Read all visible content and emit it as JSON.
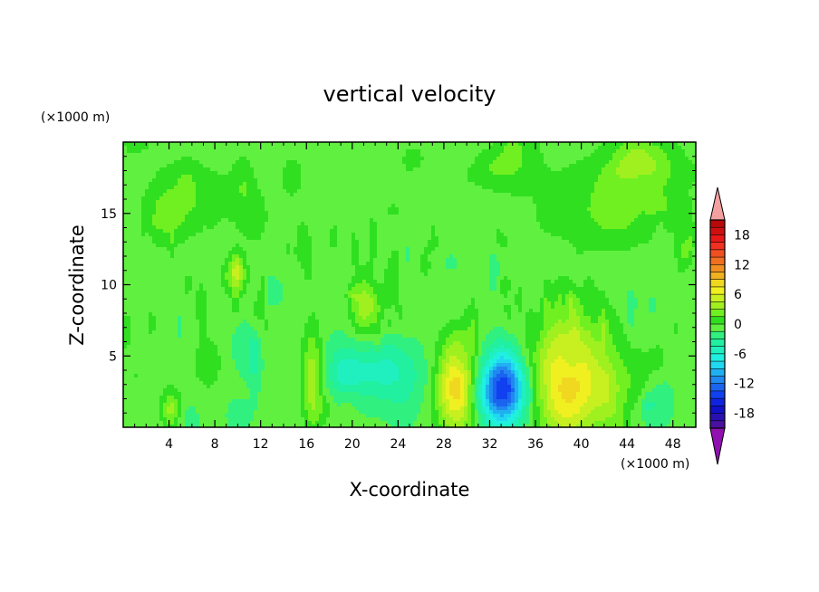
{
  "chart_data": {
    "type": "heatmap",
    "title": "vertical velocity",
    "xlabel": "X-coordinate",
    "ylabel": "Z-coordinate",
    "x_unit": "(×1000 m)",
    "y_unit": "(×1000 m)",
    "xlim": [
      0,
      50
    ],
    "ylim": [
      0,
      20
    ],
    "xticks": [
      4,
      8,
      12,
      16,
      20,
      24,
      28,
      32,
      36,
      40,
      44,
      48
    ],
    "yticks": [
      5,
      10,
      15
    ],
    "background_level": 0,
    "features": [
      {
        "x": 29.2,
        "z": 2.8,
        "value": 10,
        "sx": 1.3,
        "sz": 2.2
      },
      {
        "x": 39.0,
        "z": 3.5,
        "value": 9,
        "sx": 2.6,
        "sz": 3.2
      },
      {
        "x": 33.2,
        "z": 2.6,
        "value": -13,
        "sx": 1.6,
        "sz": 1.8
      },
      {
        "x": 22.5,
        "z": 4.0,
        "value": -4,
        "sx": 2.5,
        "sz": 1.6
      },
      {
        "x": 4.2,
        "z": 1.2,
        "value": 5,
        "sx": 0.6,
        "sz": 1.0
      },
      {
        "x": 16.5,
        "z": 3.5,
        "value": 5,
        "sx": 0.6,
        "sz": 2.5
      },
      {
        "x": 21.0,
        "z": 8.5,
        "value": 5,
        "sx": 0.8,
        "sz": 1.5
      },
      {
        "x": 10.0,
        "z": 10.5,
        "value": 4,
        "sx": 0.6,
        "sz": 0.8
      },
      {
        "x": 45.0,
        "z": 3.0,
        "value": 3,
        "sx": 1.2,
        "sz": 1.5
      },
      {
        "x": 6.0,
        "z": 16.0,
        "value": 2,
        "sx": 3.0,
        "sz": 2.0
      },
      {
        "x": 43.0,
        "z": 16.0,
        "value": 2,
        "sx": 5.0,
        "sz": 2.5
      }
    ],
    "colorbar": {
      "levels": [
        -21,
        -19.5,
        -18,
        -16.5,
        -15,
        -13.5,
        -12,
        -10.5,
        -9,
        -7.5,
        -6,
        -4.5,
        -3,
        -1.5,
        0,
        1.5,
        3,
        4.5,
        6,
        7.5,
        9,
        10.5,
        12,
        13.5,
        15,
        16.5,
        18,
        19.5,
        21
      ],
      "labels": [
        -18,
        -12,
        -6,
        0,
        6,
        12,
        18
      ],
      "under_color": "#9010b0",
      "over_color": "#f2a0a0",
      "colors": [
        "#4a10a0",
        "#2a10b0",
        "#1010c8",
        "#1024e0",
        "#1040f0",
        "#1a64f0",
        "#2088f0",
        "#20b0f0",
        "#20d8f0",
        "#20f0e0",
        "#20f0c0",
        "#20f0a0",
        "#30f080",
        "#60f040",
        "#30e020",
        "#70f020",
        "#a0f020",
        "#c8f020",
        "#f0f020",
        "#f0d820",
        "#f0b020",
        "#f09020",
        "#f07020",
        "#f05020",
        "#f03020",
        "#e81818",
        "#d01010",
        "#b80a0a"
      ]
    }
  }
}
